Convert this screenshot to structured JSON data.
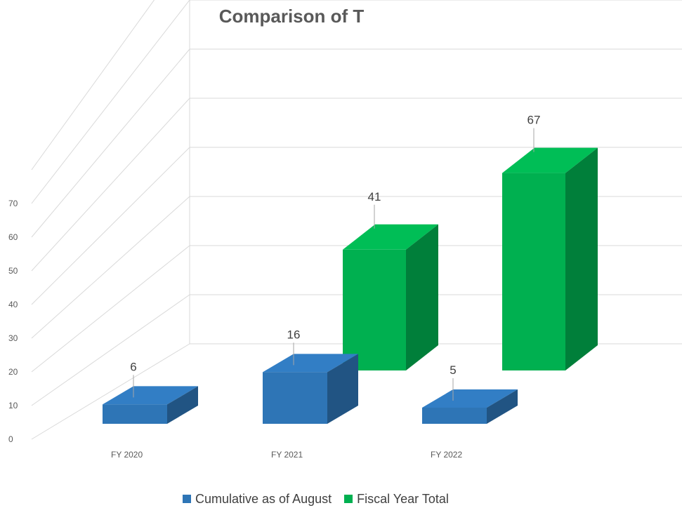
{
  "chart_data": {
    "type": "bar",
    "title": "Comparison of T",
    "categories": [
      "FY 2020",
      "FY 2021",
      "FY 2022"
    ],
    "series": [
      {
        "name": "Cumulative as of August",
        "color": "#2e75b6",
        "values": [
          6,
          16,
          5
        ]
      },
      {
        "name": "Fiscal Year Total",
        "color": "#00b050",
        "values": [
          null,
          41,
          67
        ]
      }
    ],
    "y_ticks": [
      "0",
      "10",
      "20",
      "30",
      "40",
      "50",
      "60",
      "70"
    ],
    "data_labels": [
      {
        "series": 0,
        "category": 0,
        "text": "6"
      },
      {
        "series": 0,
        "category": 1,
        "text": "16"
      },
      {
        "series": 0,
        "category": 2,
        "text": "5"
      },
      {
        "series": 1,
        "category": 1,
        "text": "41"
      },
      {
        "series": 1,
        "category": 2,
        "text": "67"
      }
    ],
    "ylim": [
      0,
      70
    ],
    "grid": true,
    "legend_position": "bottom"
  }
}
